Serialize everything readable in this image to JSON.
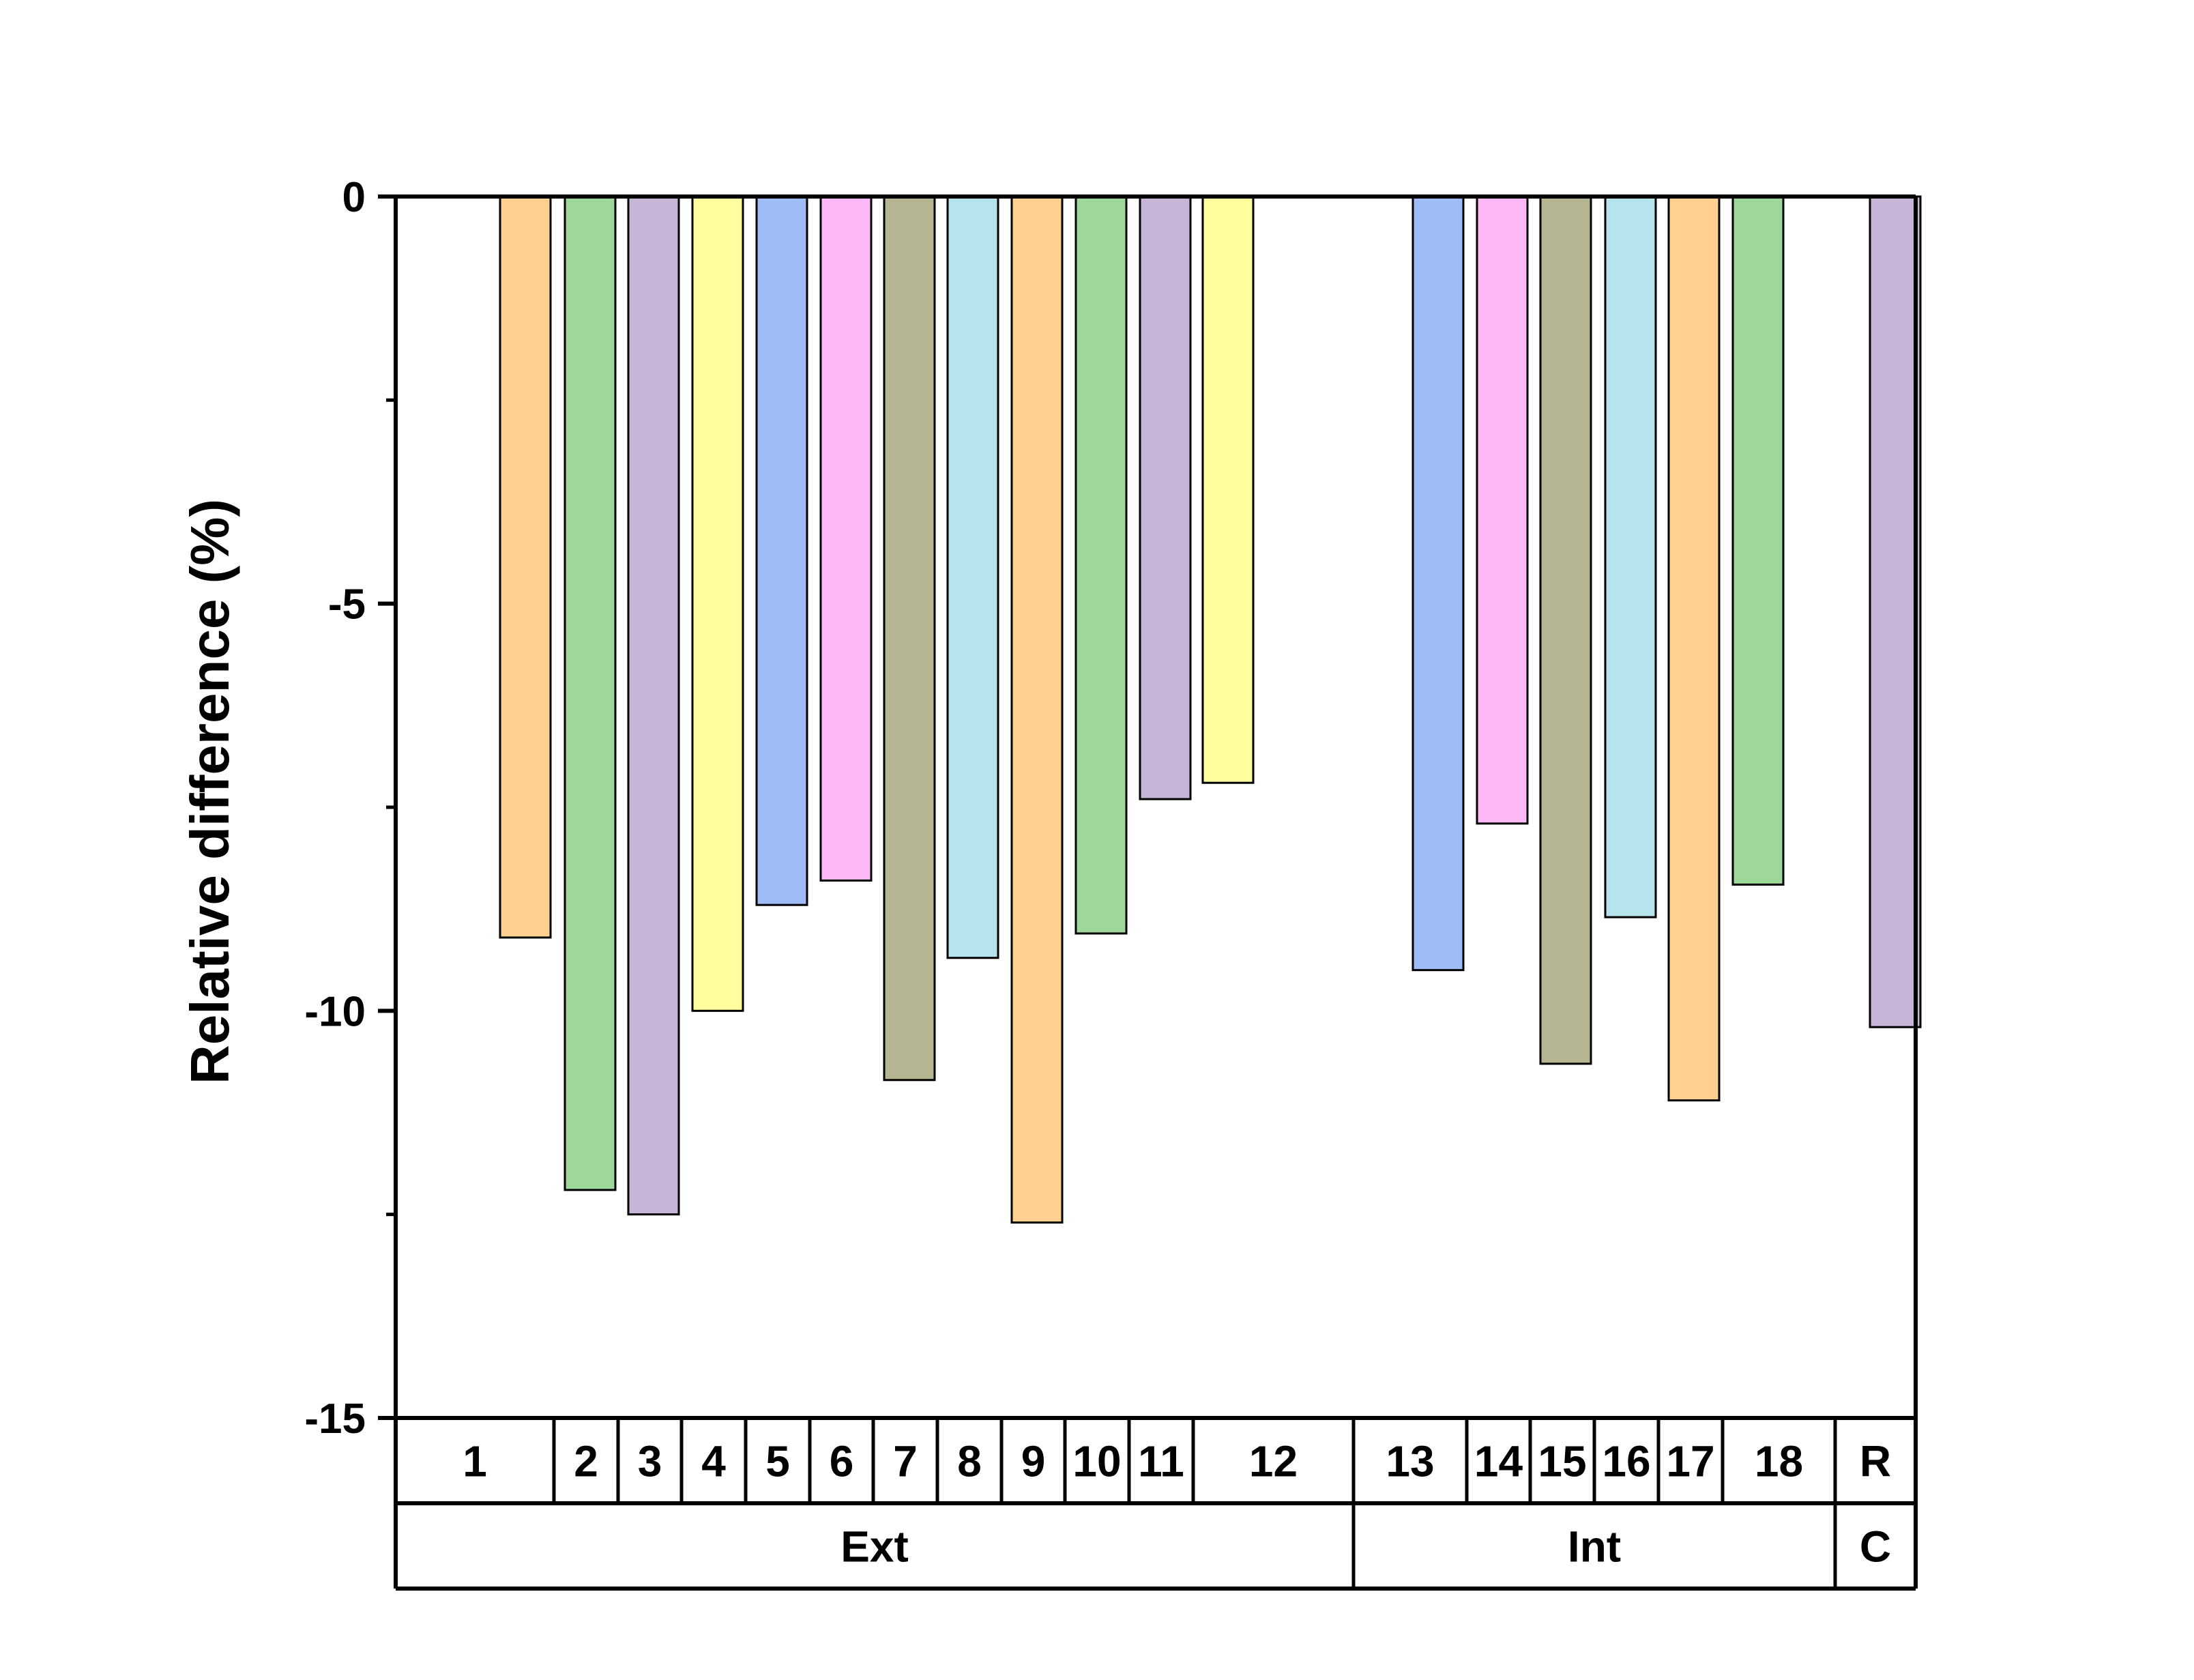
{
  "chart_data": {
    "type": "bar",
    "ylabel": "Relative difference (%)",
    "xlabel": "",
    "title": "",
    "ylim": [
      -15,
      0
    ],
    "yticks": [
      0,
      -5,
      -10,
      -15
    ],
    "ytick_labels": [
      "0",
      "-5",
      "-10",
      "-15"
    ],
    "grid": false,
    "categories": [
      "1",
      "2",
      "3",
      "4",
      "5",
      "6",
      "7",
      "8",
      "9",
      "10",
      "11",
      "12",
      "13",
      "14",
      "15",
      "16",
      "17",
      "18",
      "R"
    ],
    "values": [
      -9.1,
      -12.2,
      -12.5,
      -10.0,
      -8.7,
      -8.4,
      -10.85,
      -9.35,
      -12.6,
      -9.05,
      -7.4,
      -7.2,
      -9.5,
      -7.7,
      -10.65,
      -8.85,
      -11.1,
      -8.45,
      -10.2
    ],
    "colors": [
      "#FFD08F",
      "#9DD79A",
      "#C7B5D8",
      "#FFFFA0",
      "#9FBCF7",
      "#FDB8F8",
      "#B5B591",
      "#B6E4EC",
      "#FFD08F",
      "#9DD79A",
      "#C7B5D8",
      "#FFFFA0",
      "#9FBCF7",
      "#FDB8F8",
      "#B5B591",
      "#B6E4EC",
      "#FFD08F",
      "#9DD79A",
      "#C7B5D8"
    ],
    "groups": [
      {
        "label": "Ext",
        "categories": [
          "1",
          "2",
          "3",
          "4",
          "5",
          "6",
          "7",
          "8",
          "9",
          "10",
          "11",
          "12"
        ]
      },
      {
        "label": "Int",
        "categories": [
          "13",
          "14",
          "15",
          "16",
          "17",
          "18"
        ]
      },
      {
        "label": "C",
        "categories": [
          "R"
        ]
      }
    ]
  }
}
